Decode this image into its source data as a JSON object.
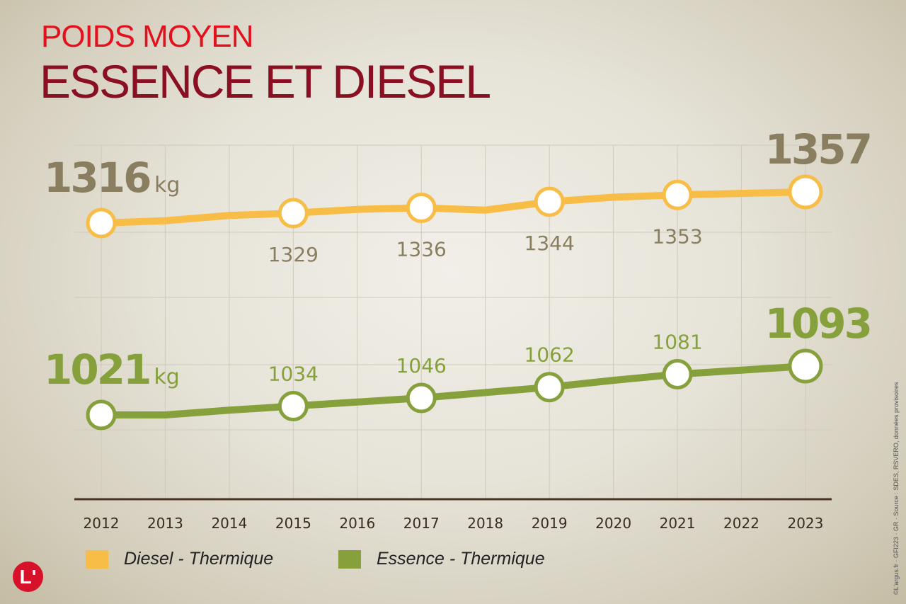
{
  "title_line1": "POIDS MOYEN",
  "title_line2": "ESSENCE ET DIESEL",
  "source": "©L'argus.fr · GFI223 · GR · Source : SDES, RSVERO, données provisoires",
  "logo": "L'",
  "unit": "kg",
  "chart_data": {
    "type": "line",
    "title": "POIDS MOYEN ESSENCE ET DIESEL",
    "xlabel": "",
    "ylabel": "kg",
    "categories": [
      "2012",
      "2013",
      "2014",
      "2015",
      "2016",
      "2017",
      "2018",
      "2019",
      "2020",
      "2021",
      "2022",
      "2023"
    ],
    "series": [
      {
        "name": "Diesel - Thermique",
        "color": "#f7bd47",
        "values": [
          1316,
          1319,
          1326,
          1329,
          1334,
          1336,
          1333,
          1344,
          1350,
          1353,
          1355,
          1357
        ],
        "labels": {
          "0": "1316",
          "3": "1329",
          "5": "1336",
          "7": "1344",
          "9": "1353",
          "11": "1357"
        }
      },
      {
        "name": "Essence - Thermique",
        "color": "#86a03c",
        "values": [
          1021,
          1021,
          1028,
          1034,
          1040,
          1046,
          1054,
          1062,
          1072,
          1081,
          1087,
          1093
        ],
        "labels": {
          "0": "1021",
          "3": "1034",
          "5": "1046",
          "7": "1062",
          "9": "1081",
          "11": "1093"
        }
      }
    ],
    "markers": [
      0,
      3,
      5,
      7,
      9,
      11
    ],
    "grid": true,
    "legend_position": "bottom-left"
  }
}
